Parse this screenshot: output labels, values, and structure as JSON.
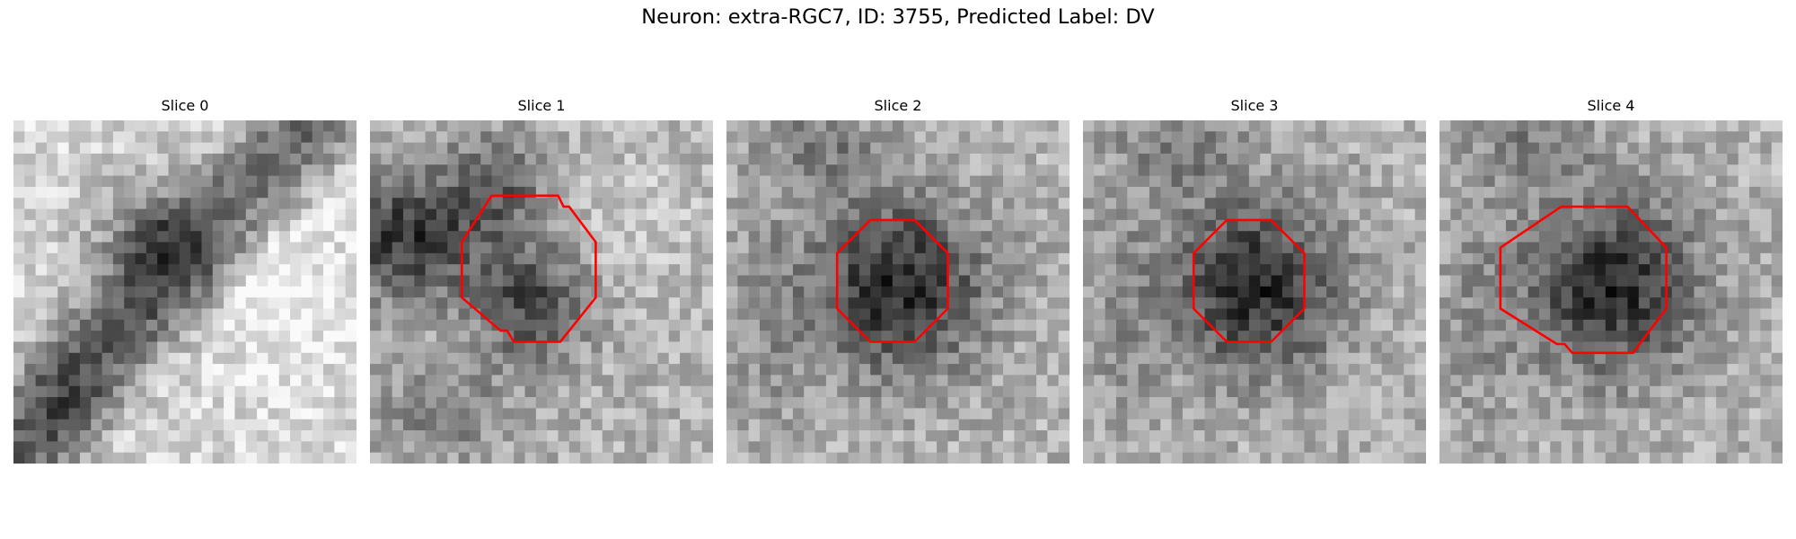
{
  "figure": {
    "title": "Neuron: extra-RGC7, ID: 3755, Predicted Label: DV",
    "contour_color": "#ff0000"
  },
  "panels": [
    {
      "title": "Slice 0",
      "contour": null,
      "texture": "diagonal-band"
    },
    {
      "title": "Slice 1",
      "contour": "octagon-notched-top-right",
      "texture": "dark-blob-partial"
    },
    {
      "title": "Slice 2",
      "contour": "octagon",
      "texture": "dark-blob"
    },
    {
      "title": "Slice 3",
      "contour": "octagon",
      "texture": "dark-blob"
    },
    {
      "title": "Slice 4",
      "contour": "octagon-notched-bottom-left",
      "texture": "dark-blob"
    }
  ]
}
